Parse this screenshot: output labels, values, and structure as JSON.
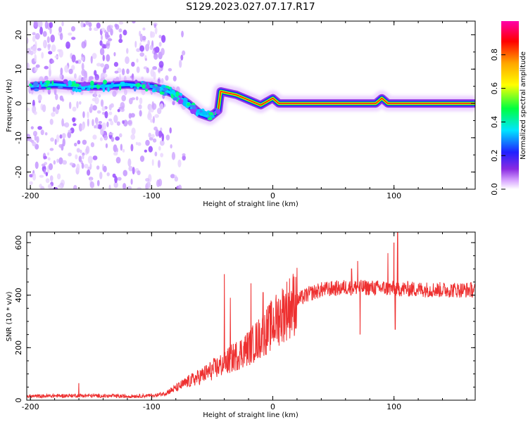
{
  "title": "S129.2023.027.07.17.R17",
  "chart_data": [
    {
      "type": "heatmap",
      "xlabel": "Height of straight line (km)",
      "ylabel": "Frequency (Hz)",
      "xlim": [
        -203,
        167
      ],
      "ylim": [
        -25,
        24
      ],
      "xticks": [
        -200,
        -100,
        0,
        100
      ],
      "yticks": [
        -20,
        -10,
        0,
        10,
        20
      ],
      "colorbar": {
        "label": "Normalized spectral amplitude",
        "range": [
          0,
          1
        ],
        "ticks": [
          "0.0",
          "0.2",
          "0.4",
          "0.6",
          "0.8"
        ],
        "colors": [
          "#ffffff",
          "#8a2be2",
          "#2020ff",
          "#00e5ff",
          "#00ff00",
          "#ffff00",
          "#ffa500",
          "#ff0000",
          "#ff00aa"
        ]
      },
      "ridge": [
        {
          "x": -200,
          "y": 5
        },
        {
          "x": -180,
          "y": 5.5
        },
        {
          "x": -160,
          "y": 5
        },
        {
          "x": -140,
          "y": 5
        },
        {
          "x": -120,
          "y": 5.5
        },
        {
          "x": -100,
          "y": 5
        },
        {
          "x": -90,
          "y": 4
        },
        {
          "x": -80,
          "y": 2.5
        },
        {
          "x": -70,
          "y": 0
        },
        {
          "x": -60,
          "y": -3
        },
        {
          "x": -52,
          "y": -4
        },
        {
          "x": -45,
          "y": -2
        },
        {
          "x": -43,
          "y": 3.5
        },
        {
          "x": -30,
          "y": 2.5
        },
        {
          "x": -20,
          "y": 1
        },
        {
          "x": -10,
          "y": -0.5
        },
        {
          "x": 0,
          "y": 1.5
        },
        {
          "x": 5,
          "y": 0
        },
        {
          "x": 50,
          "y": 0
        },
        {
          "x": 85,
          "y": 0
        },
        {
          "x": 90,
          "y": 1.5
        },
        {
          "x": 95,
          "y": 0
        },
        {
          "x": 167,
          "y": 0
        }
      ]
    },
    {
      "type": "line",
      "xlabel": "Height of straight line (km)",
      "ylabel": "SNR (10 * v/v)",
      "xlim": [
        -203,
        167
      ],
      "ylim": [
        0,
        640
      ],
      "xticks": [
        -200,
        -100,
        0,
        100
      ],
      "yticks": [
        0,
        200,
        400,
        600
      ],
      "color": "#ee3030",
      "trend": [
        {
          "x": -203,
          "y": 12
        },
        {
          "x": -160,
          "y": 15
        },
        {
          "x": -120,
          "y": 12
        },
        {
          "x": -100,
          "y": 15
        },
        {
          "x": -90,
          "y": 25
        },
        {
          "x": -80,
          "y": 45
        },
        {
          "x": -70,
          "y": 70
        },
        {
          "x": -60,
          "y": 90
        },
        {
          "x": -50,
          "y": 115
        },
        {
          "x": -40,
          "y": 140
        },
        {
          "x": -30,
          "y": 170
        },
        {
          "x": -20,
          "y": 200
        },
        {
          "x": -10,
          "y": 240
        },
        {
          "x": 0,
          "y": 290
        },
        {
          "x": 10,
          "y": 340
        },
        {
          "x": 20,
          "y": 380
        },
        {
          "x": 30,
          "y": 405
        },
        {
          "x": 40,
          "y": 420
        },
        {
          "x": 60,
          "y": 430
        },
        {
          "x": 80,
          "y": 428
        },
        {
          "x": 100,
          "y": 425
        },
        {
          "x": 120,
          "y": 422
        },
        {
          "x": 140,
          "y": 420
        },
        {
          "x": 167,
          "y": 420
        }
      ],
      "spikes": [
        {
          "x": -160,
          "y": 65
        },
        {
          "x": -40,
          "y": 480
        },
        {
          "x": -35,
          "y": 390
        },
        {
          "x": -18,
          "y": 445
        },
        {
          "x": -8,
          "y": 410
        },
        {
          "x": 55,
          "y": 440
        },
        {
          "x": 65,
          "y": 500
        },
        {
          "x": 70,
          "y": 530
        },
        {
          "x": 72,
          "y": 250
        },
        {
          "x": 95,
          "y": 560
        },
        {
          "x": 100,
          "y": 600
        },
        {
          "x": 103,
          "y": 640
        },
        {
          "x": 101,
          "y": 270
        }
      ]
    }
  ]
}
